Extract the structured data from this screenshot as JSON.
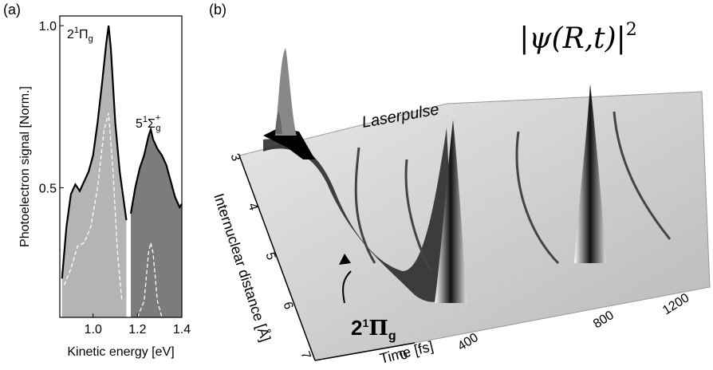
{
  "panel_a": {
    "label": "(a)",
    "chart_data": {
      "type": "area",
      "xlabel": "Kinetic energy [eV]",
      "ylabel": "Photoelectron signal [Norm.]",
      "xlim": [
        0.85,
        1.4
      ],
      "ylim": [
        0.1,
        1.03
      ],
      "xticks": [
        {
          "value": 1.0,
          "label": "1.0"
        },
        1.2,
        1.4
      ],
      "yticks": [
        0.5,
        {
          "value": 1.0,
          "label": "1.0"
        }
      ],
      "series": [
        {
          "color": "#000000",
          "fill_colors": [
            "#b4b4b4",
            "#7c7c7c"
          ],
          "x": [
            0.86,
            0.88,
            0.9,
            0.92,
            0.94,
            0.96,
            0.98,
            1.0,
            1.02,
            1.04,
            1.06,
            1.07,
            1.08,
            1.1,
            1.12,
            1.14,
            1.15,
            1.16,
            1.17,
            1.19,
            1.21,
            1.23,
            1.25,
            1.26,
            1.27,
            1.29,
            1.31,
            1.33,
            1.35,
            1.37,
            1.39,
            1.4
          ],
          "values": [
            0.22,
            0.38,
            0.48,
            0.51,
            0.49,
            0.52,
            0.55,
            0.6,
            0.7,
            0.82,
            0.95,
            1.0,
            0.93,
            0.7,
            0.55,
            0.45,
            0.4,
            null,
            0.42,
            0.5,
            0.56,
            0.6,
            0.66,
            0.68,
            0.65,
            0.62,
            0.6,
            0.57,
            0.52,
            0.47,
            0.44,
            0.45
          ]
        },
        {
          "color": "#ffffff",
          "dashed": true,
          "x": [
            0.87,
            0.9,
            0.93,
            0.96,
            0.99,
            1.02,
            1.05,
            1.07,
            1.09,
            1.11,
            1.13,
            1.16,
            1.2,
            1.23,
            1.25,
            1.26,
            1.27,
            1.29,
            1.31
          ],
          "values": [
            0.2,
            0.25,
            0.32,
            0.33,
            0.38,
            0.5,
            0.68,
            0.73,
            0.55,
            0.3,
            0.15,
            null,
            0.1,
            0.15,
            0.3,
            0.33,
            0.3,
            0.15,
            0.1
          ]
        }
      ],
      "annotations": [
        {
          "n": "2",
          "spin": "1",
          "sym": "Π",
          "sub": "g"
        },
        {
          "n": "5",
          "spin": "1",
          "sym": "Σ",
          "sub": "g",
          "sup": "+"
        }
      ]
    }
  },
  "panel_b": {
    "label": "(b)",
    "formula": {
      "body": "|ψ(R,t)|",
      "power": "2"
    },
    "pulse_label": "Laserpulse",
    "state_label": {
      "n": "2",
      "spin": "1",
      "sym": "Π",
      "sub": "g"
    },
    "y_axis_label": "Internuclear distance [Å]",
    "x_axis_label": "Time [fs]",
    "distance_ticks": [
      "3",
      "4",
      "5",
      "6",
      "7"
    ],
    "time_ticks": [
      "0",
      "400",
      "800",
      "1200"
    ]
  }
}
